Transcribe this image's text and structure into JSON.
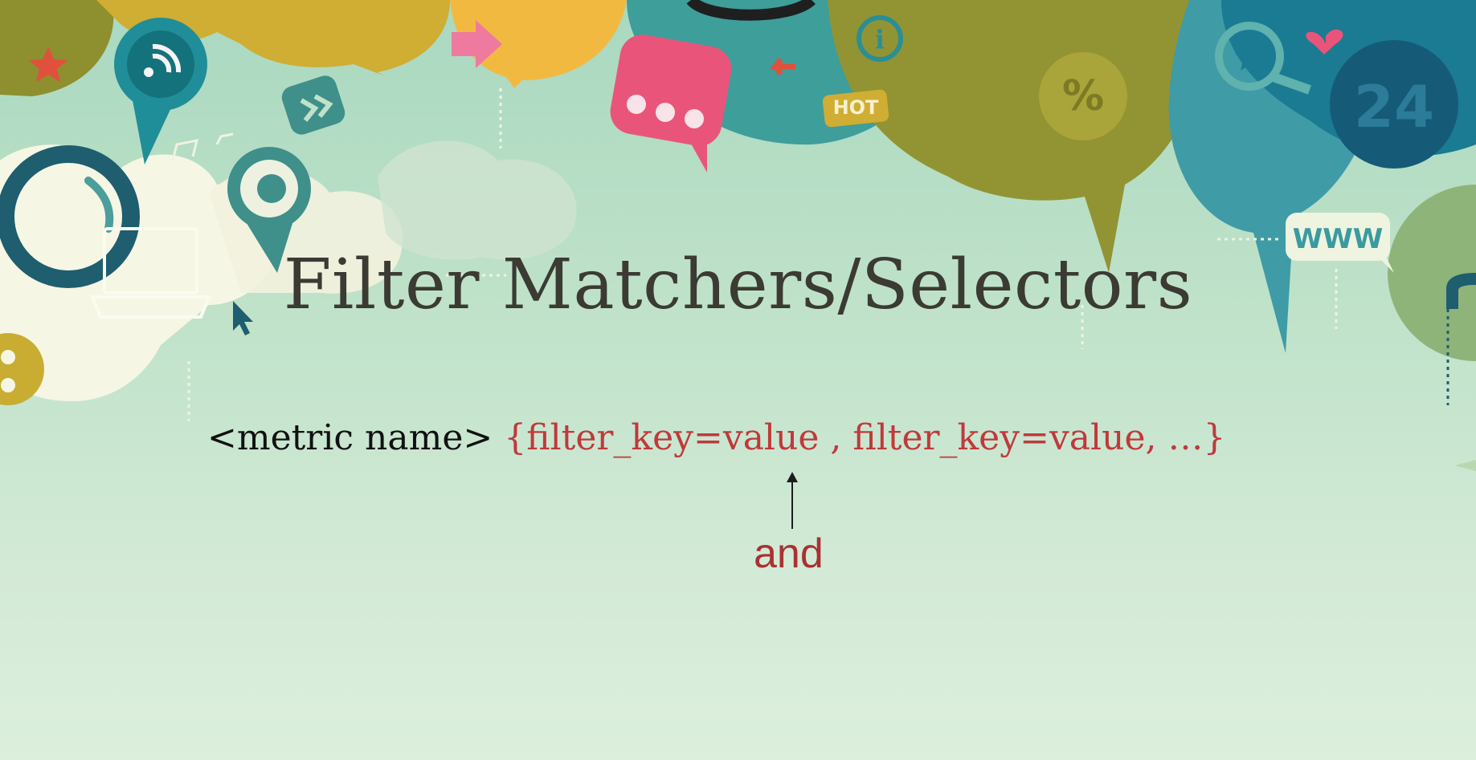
{
  "slide": {
    "title": "Filter Matchers/Selectors",
    "formula": {
      "metric_part": "<metric name>",
      "filter_part": "{filter_key=value , filter_key=value, …}"
    },
    "annotation": "and",
    "decor_labels": {
      "hot": "HOT",
      "percent": "%",
      "number": "24",
      "www": "WWW",
      "info": "i"
    }
  },
  "colors": {
    "background_top": "#a9d8c0",
    "background_bottom": "#dcefdd",
    "title": "#3b3a33",
    "formula_metric": "#111111",
    "formula_filters": "#c0393b",
    "annotation": "#a83232",
    "teal": "#1d8a92",
    "olive": "#8e8f2f",
    "mustard": "#d3b43a",
    "pink": "#e9557a",
    "dark_teal": "#1e5e6e",
    "cream": "#f6f6e4"
  }
}
